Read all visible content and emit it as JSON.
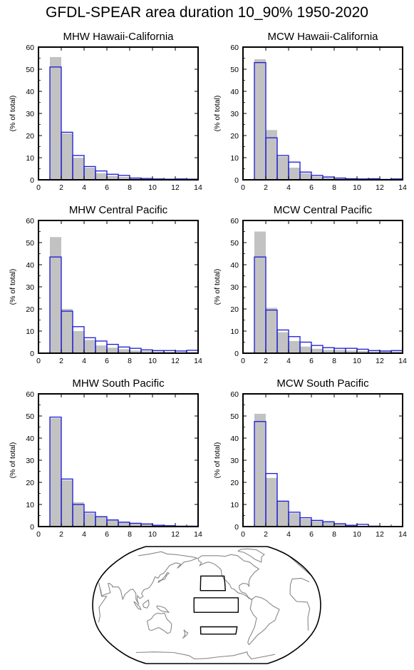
{
  "figure": {
    "title": "GFDL-SPEAR area duration 10_90% 1950-2020",
    "colors": {
      "shaded_fill": "#c2c2c2",
      "outline": "#1a1ad6",
      "map_coast": "#888888"
    }
  },
  "chart_data": [
    {
      "type": "bar",
      "title": "MHW Hawaii-California",
      "ylabel": "(% of total)",
      "xlim": [
        0,
        14
      ],
      "ylim": [
        0,
        60
      ],
      "xticks": [
        0,
        2,
        4,
        6,
        8,
        10,
        12,
        14
      ],
      "yticks": [
        0,
        10,
        20,
        30,
        40,
        50,
        60
      ],
      "bin_edges": [
        1,
        2,
        3,
        4,
        5,
        6,
        7,
        8,
        9,
        10,
        11,
        12,
        13,
        14
      ],
      "series": [
        {
          "style": "filled",
          "values": [
            55.5,
            21,
            10,
            5.5,
            3,
            1.8,
            1.3,
            0.8,
            0.6,
            0.4,
            0.3,
            0.6,
            0.3
          ]
        },
        {
          "style": "outline",
          "values": [
            51,
            21.5,
            11,
            6,
            4,
            2.5,
            2,
            0.8,
            0.6,
            0.4,
            0.3,
            0.4,
            0.3
          ]
        }
      ]
    },
    {
      "type": "bar",
      "title": "MCW Hawaii-California",
      "ylabel": "(% of total)",
      "xlim": [
        0,
        14
      ],
      "ylim": [
        0,
        60
      ],
      "xticks": [
        0,
        2,
        4,
        6,
        8,
        10,
        12,
        14
      ],
      "yticks": [
        0,
        10,
        20,
        30,
        40,
        50,
        60
      ],
      "bin_edges": [
        1,
        2,
        3,
        4,
        5,
        6,
        7,
        8,
        9,
        10,
        11,
        12,
        13,
        14
      ],
      "series": [
        {
          "style": "filled",
          "values": [
            54.5,
            22.5,
            10.5,
            5.5,
            3,
            1.5,
            1,
            0.8,
            0.5,
            0.3,
            0.3,
            0.2,
            0.2
          ]
        },
        {
          "style": "outline",
          "values": [
            53,
            19,
            11,
            8,
            3.5,
            2,
            1.3,
            0.8,
            0.5,
            0.4,
            0.5,
            0.2,
            0.4
          ]
        }
      ]
    },
    {
      "type": "bar",
      "title": "MHW Central Pacific",
      "ylabel": "(% of total)",
      "xlim": [
        0,
        14
      ],
      "ylim": [
        0,
        60
      ],
      "xticks": [
        0,
        2,
        4,
        6,
        8,
        10,
        12,
        14
      ],
      "yticks": [
        0,
        10,
        20,
        30,
        40,
        50,
        60
      ],
      "bin_edges": [
        1,
        2,
        3,
        4,
        5,
        6,
        7,
        8,
        9,
        10,
        11,
        12,
        13,
        14
      ],
      "series": [
        {
          "style": "filled",
          "values": [
            52.5,
            20,
            10,
            6,
            3.5,
            2.5,
            1.8,
            1.2,
            1,
            0.8,
            0.6,
            0.5,
            0.5
          ]
        },
        {
          "style": "outline",
          "values": [
            43.5,
            19,
            12,
            7,
            5.5,
            4,
            2.8,
            2.2,
            1.5,
            1.2,
            1.2,
            1,
            1.3
          ]
        }
      ]
    },
    {
      "type": "bar",
      "title": "MCW Central Pacific",
      "ylabel": "(% of total)",
      "xlim": [
        0,
        14
      ],
      "ylim": [
        0,
        60
      ],
      "xticks": [
        0,
        2,
        4,
        6,
        8,
        10,
        12,
        14
      ],
      "yticks": [
        0,
        10,
        20,
        30,
        40,
        50,
        60
      ],
      "bin_edges": [
        1,
        2,
        3,
        4,
        5,
        6,
        7,
        8,
        9,
        10,
        11,
        12,
        13,
        14
      ],
      "series": [
        {
          "style": "filled",
          "values": [
            55,
            20.5,
            9.5,
            5.5,
            3,
            2,
            1.5,
            1.5,
            1.2,
            1,
            0.8,
            0.8,
            0.8
          ]
        },
        {
          "style": "outline",
          "values": [
            43.5,
            19.5,
            10.5,
            7.5,
            5,
            3.5,
            2.5,
            2.2,
            2.2,
            1.8,
            1.2,
            1,
            1.2
          ]
        }
      ]
    },
    {
      "type": "bar",
      "title": "MHW South Pacific",
      "ylabel": "(% of total)",
      "xlim": [
        0,
        14
      ],
      "ylim": [
        0,
        60
      ],
      "xticks": [
        0,
        2,
        4,
        6,
        8,
        10,
        12,
        14
      ],
      "yticks": [
        0,
        10,
        20,
        30,
        40,
        50,
        60
      ],
      "bin_edges": [
        1,
        2,
        3,
        4,
        5,
        6,
        7,
        8,
        9,
        10,
        11,
        12,
        13,
        14
      ],
      "series": [
        {
          "style": "filled",
          "values": [
            49,
            21,
            11,
            6,
            4.5,
            3,
            1.8,
            1.3,
            1,
            0.6,
            0.4,
            0.2,
            0.2
          ]
        },
        {
          "style": "outline",
          "values": [
            49.5,
            21.5,
            10,
            6.5,
            4.5,
            3,
            2,
            1.5,
            1.2,
            0.6,
            0.4,
            0.2,
            0.2
          ]
        }
      ]
    },
    {
      "type": "bar",
      "title": "MCW South Pacific",
      "ylabel": "(% of total)",
      "xlim": [
        0,
        14
      ],
      "ylim": [
        0,
        60
      ],
      "xticks": [
        0,
        2,
        4,
        6,
        8,
        10,
        12,
        14
      ],
      "yticks": [
        0,
        10,
        20,
        30,
        40,
        50,
        60
      ],
      "bin_edges": [
        1,
        2,
        3,
        4,
        5,
        6,
        7,
        8,
        9,
        10,
        11,
        12,
        13,
        14
      ],
      "series": [
        {
          "style": "filled",
          "values": [
            51,
            22,
            11.5,
            6,
            3.5,
            2.5,
            2,
            1.2,
            0.5,
            0.3,
            0.2,
            0.1,
            0.1
          ]
        },
        {
          "style": "outline",
          "values": [
            47.5,
            24,
            11.5,
            6.5,
            4,
            2.8,
            2.2,
            1.3,
            0.6,
            1,
            0.2,
            0.1,
            0.1
          ]
        }
      ]
    }
  ],
  "map": {
    "projection": "robinson",
    "regions": [
      {
        "name": "Hawaii-California",
        "lon": [
          -160,
          -120
        ],
        "lat": [
          20,
          40
        ]
      },
      {
        "name": "Central Pacific",
        "lon": [
          -170,
          -100
        ],
        "lat": [
          -10,
          10
        ]
      },
      {
        "name": "South Pacific",
        "lon": [
          -160,
          -100
        ],
        "lat": [
          -40,
          -30
        ]
      }
    ]
  }
}
